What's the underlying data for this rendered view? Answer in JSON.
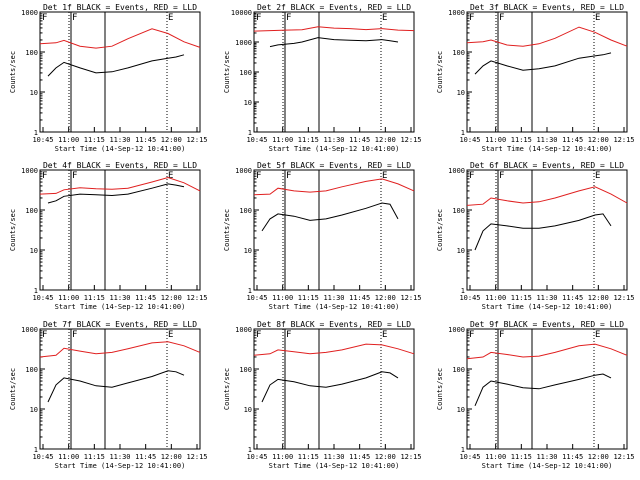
{
  "figure": {
    "start_time_label": "Start Time (14-Sep-12 10:41:00)",
    "ylabel": "Counts/sec"
  },
  "chart_data": [
    {
      "type": "line",
      "title": "Det 1f BLACK = Events, RED = LLD",
      "xlabel": "Start Time (14-Sep-12 10:41:00)",
      "ylabel": "Counts/sec",
      "yscale": "log",
      "ylim": [
        1,
        1000
      ],
      "xlim_minutes": [
        0,
        100
      ],
      "x_ticks": [
        "10:45",
        "11:00",
        "11:15",
        "11:30",
        "11:45",
        "12:00",
        "12:15"
      ],
      "y_ticks": [
        "1",
        "10",
        "100",
        "1000"
      ],
      "marker_labels": [
        "F",
        "F",
        "E"
      ],
      "series": [
        {
          "name": "LLD",
          "color": "#e02020",
          "x": [
            0,
            10,
            15,
            25,
            35,
            45,
            55,
            70,
            80,
            90,
            100
          ],
          "y": [
            160,
            170,
            195,
            140,
            125,
            140,
            215,
            380,
            290,
            180,
            130
          ]
        },
        {
          "name": "Events",
          "color": "#000000",
          "x": [
            5,
            10,
            15,
            25,
            35,
            45,
            55,
            70,
            80,
            85,
            90
          ],
          "y": [
            25,
            40,
            55,
            40,
            30,
            32,
            40,
            60,
            70,
            75,
            85
          ]
        }
      ]
    },
    {
      "type": "line",
      "title": "Det 2f BLACK = Events, RED = LLD",
      "xlabel": "Start Time (14-Sep-12 10:41:00)",
      "ylabel": "Counts/sec",
      "yscale": "log",
      "ylim": [
        1,
        10000
      ],
      "xlim_minutes": [
        0,
        100
      ],
      "x_ticks": [
        "10:45",
        "11:00",
        "11:15",
        "11:30",
        "11:45",
        "12:00",
        "12:15"
      ],
      "y_ticks": [
        "1",
        "10",
        "100",
        "1000",
        "10000"
      ],
      "marker_labels": [
        "F",
        "F",
        "E"
      ],
      "series": [
        {
          "name": "LLD",
          "color": "#e02020",
          "x": [
            0,
            10,
            20,
            30,
            40,
            50,
            60,
            70,
            80,
            90,
            100
          ],
          "y": [
            2300,
            2400,
            2500,
            2550,
            3200,
            2900,
            2800,
            2600,
            2800,
            2500,
            2400
          ]
        },
        {
          "name": "Events",
          "color": "#000000",
          "x": [
            10,
            15,
            25,
            30,
            40,
            50,
            60,
            70,
            80,
            85,
            90
          ],
          "y": [
            700,
            800,
            900,
            1000,
            1400,
            1200,
            1150,
            1100,
            1200,
            1100,
            1000
          ]
        }
      ]
    },
    {
      "type": "line",
      "title": "Det 3f BLACK = Events, RED = LLD",
      "xlabel": "Start Time (14-Sep-12 10:41:00)",
      "ylabel": "Counts/sec",
      "yscale": "log",
      "ylim": [
        1,
        1000
      ],
      "xlim_minutes": [
        0,
        100
      ],
      "x_ticks": [
        "10:45",
        "11:00",
        "11:15",
        "11:30",
        "11:45",
        "12:00",
        "12:15"
      ],
      "y_ticks": [
        "1",
        "10",
        "100",
        "1000"
      ],
      "marker_labels": [
        "F",
        "F",
        "E"
      ],
      "series": [
        {
          "name": "LLD",
          "color": "#e02020",
          "x": [
            0,
            10,
            15,
            25,
            35,
            45,
            55,
            70,
            80,
            90,
            100
          ],
          "y": [
            170,
            180,
            200,
            150,
            140,
            160,
            220,
            420,
            310,
            200,
            140
          ]
        },
        {
          "name": "Events",
          "color": "#000000",
          "x": [
            5,
            10,
            15,
            25,
            35,
            45,
            55,
            70,
            80,
            85,
            90
          ],
          "y": [
            28,
            45,
            60,
            45,
            35,
            38,
            45,
            70,
            80,
            85,
            95
          ]
        }
      ]
    },
    {
      "type": "line",
      "title": "Det 4f BLACK = Events, RED = LLD",
      "xlabel": "Start Time (14-Sep-12 10:41:00)",
      "ylabel": "Counts/sec",
      "yscale": "log",
      "ylim": [
        1,
        1000
      ],
      "xlim_minutes": [
        0,
        100
      ],
      "x_ticks": [
        "10:45",
        "11:00",
        "11:15",
        "11:30",
        "11:45",
        "12:00",
        "12:15"
      ],
      "y_ticks": [
        "1",
        "10",
        "100",
        "1000"
      ],
      "marker_labels": [
        "F",
        "F",
        "E"
      ],
      "series": [
        {
          "name": "LLD",
          "color": "#e02020",
          "x": [
            0,
            10,
            15,
            25,
            35,
            45,
            55,
            70,
            80,
            90,
            100
          ],
          "y": [
            250,
            260,
            320,
            360,
            340,
            330,
            350,
            500,
            650,
            480,
            300
          ]
        },
        {
          "name": "Events",
          "color": "#000000",
          "x": [
            5,
            10,
            15,
            25,
            35,
            45,
            55,
            70,
            80,
            85,
            90
          ],
          "y": [
            150,
            170,
            220,
            250,
            240,
            230,
            250,
            350,
            450,
            420,
            380
          ]
        }
      ]
    },
    {
      "type": "line",
      "title": "Det 5f BLACK = Events, RED = LLD",
      "xlabel": "Start Time (14-Sep-12 10:41:00)",
      "ylabel": "Counts/sec",
      "yscale": "log",
      "ylim": [
        1,
        1000
      ],
      "xlim_minutes": [
        0,
        100
      ],
      "x_ticks": [
        "10:45",
        "11:00",
        "11:15",
        "11:30",
        "11:45",
        "12:00",
        "12:15"
      ],
      "y_ticks": [
        "1",
        "10",
        "100",
        "1000"
      ],
      "marker_labels": [
        "F",
        "F",
        "E"
      ],
      "series": [
        {
          "name": "LLD",
          "color": "#e02020",
          "x": [
            0,
            10,
            15,
            25,
            35,
            45,
            55,
            70,
            80,
            90,
            100
          ],
          "y": [
            240,
            250,
            350,
            300,
            280,
            300,
            380,
            520,
            600,
            450,
            300
          ]
        },
        {
          "name": "Events",
          "color": "#000000",
          "x": [
            5,
            10,
            15,
            25,
            35,
            45,
            55,
            70,
            80,
            85,
            90
          ],
          "y": [
            30,
            60,
            80,
            70,
            55,
            60,
            75,
            110,
            150,
            140,
            60
          ]
        }
      ]
    },
    {
      "type": "line",
      "title": "Det 6f BLACK = Events, RED = LLD",
      "xlabel": "Start Time (14-Sep-12 10:41:00)",
      "ylabel": "Counts/sec",
      "yscale": "log",
      "ylim": [
        1,
        1000
      ],
      "xlim_minutes": [
        0,
        100
      ],
      "x_ticks": [
        "10:45",
        "11:00",
        "11:15",
        "11:30",
        "11:45",
        "12:00",
        "12:15"
      ],
      "y_ticks": [
        "1",
        "10",
        "100",
        "1000"
      ],
      "marker_labels": [
        "F",
        "F",
        "E"
      ],
      "series": [
        {
          "name": "LLD",
          "color": "#e02020",
          "x": [
            0,
            10,
            15,
            25,
            35,
            45,
            55,
            70,
            80,
            90,
            100
          ],
          "y": [
            130,
            140,
            200,
            170,
            150,
            160,
            200,
            300,
            380,
            250,
            150
          ]
        },
        {
          "name": "Events",
          "color": "#000000",
          "x": [
            5,
            10,
            15,
            25,
            35,
            45,
            55,
            70,
            80,
            85,
            90
          ],
          "y": [
            10,
            30,
            45,
            40,
            35,
            35,
            40,
            55,
            75,
            80,
            40
          ]
        }
      ]
    },
    {
      "type": "line",
      "title": "Det 7f BLACK = Events, RED = LLD",
      "xlabel": "Start Time (14-Sep-12 10:41:00)",
      "ylabel": "Counts/sec",
      "yscale": "log",
      "ylim": [
        1,
        1000
      ],
      "xlim_minutes": [
        0,
        100
      ],
      "x_ticks": [
        "10:45",
        "11:00",
        "11:15",
        "11:30",
        "11:45",
        "12:00",
        "12:15"
      ],
      "y_ticks": [
        "1",
        "10",
        "100",
        "1000"
      ],
      "marker_labels": [
        "F",
        "F",
        "E"
      ],
      "series": [
        {
          "name": "LLD",
          "color": "#e02020",
          "x": [
            0,
            10,
            15,
            25,
            35,
            45,
            55,
            70,
            80,
            90,
            100
          ],
          "y": [
            200,
            220,
            330,
            280,
            240,
            260,
            320,
            450,
            480,
            380,
            260
          ]
        },
        {
          "name": "Events",
          "color": "#000000",
          "x": [
            5,
            10,
            15,
            25,
            35,
            45,
            55,
            70,
            80,
            85,
            90
          ],
          "y": [
            15,
            40,
            60,
            50,
            38,
            35,
            45,
            65,
            90,
            85,
            70
          ]
        }
      ]
    },
    {
      "type": "line",
      "title": "Det 8f BLACK = Events, RED = LLD",
      "xlabel": "Start Time (14-Sep-12 10:41:00)",
      "ylabel": "Counts/sec",
      "yscale": "log",
      "ylim": [
        1,
        1000
      ],
      "xlim_minutes": [
        0,
        100
      ],
      "x_ticks": [
        "10:45",
        "11:00",
        "11:15",
        "11:30",
        "11:45",
        "12:00",
        "12:15"
      ],
      "y_ticks": [
        "1",
        "10",
        "100",
        "1000"
      ],
      "marker_labels": [
        "F",
        "F",
        "E"
      ],
      "series": [
        {
          "name": "LLD",
          "color": "#e02020",
          "x": [
            0,
            10,
            15,
            25,
            35,
            45,
            55,
            70,
            80,
            90,
            100
          ],
          "y": [
            220,
            240,
            300,
            270,
            240,
            260,
            300,
            420,
            400,
            320,
            240
          ]
        },
        {
          "name": "Events",
          "color": "#000000",
          "x": [
            5,
            10,
            15,
            25,
            35,
            45,
            55,
            70,
            80,
            85,
            90
          ],
          "y": [
            15,
            40,
            55,
            48,
            38,
            35,
            42,
            60,
            85,
            80,
            60
          ]
        }
      ]
    },
    {
      "type": "line",
      "title": "Det 9f BLACK = Events, RED = LLD",
      "xlabel": "Start Time (14-Sep-12 10:41:00)",
      "ylabel": "Counts/sec",
      "yscale": "log",
      "ylim": [
        1,
        1000
      ],
      "xlim_minutes": [
        0,
        100
      ],
      "x_ticks": [
        "10:45",
        "11:00",
        "11:15",
        "11:30",
        "11:45",
        "12:00",
        "12:15"
      ],
      "y_ticks": [
        "1",
        "10",
        "100",
        "1000"
      ],
      "marker_labels": [
        "F",
        "F",
        "E"
      ],
      "series": [
        {
          "name": "LLD",
          "color": "#e02020",
          "x": [
            0,
            10,
            15,
            25,
            35,
            45,
            55,
            70,
            80,
            90,
            100
          ],
          "y": [
            180,
            200,
            260,
            230,
            200,
            210,
            260,
            380,
            420,
            320,
            220
          ]
        },
        {
          "name": "Events",
          "color": "#000000",
          "x": [
            5,
            10,
            15,
            25,
            35,
            45,
            55,
            70,
            80,
            85,
            90
          ],
          "y": [
            12,
            35,
            50,
            42,
            34,
            32,
            40,
            55,
            70,
            75,
            60
          ]
        }
      ]
    }
  ]
}
